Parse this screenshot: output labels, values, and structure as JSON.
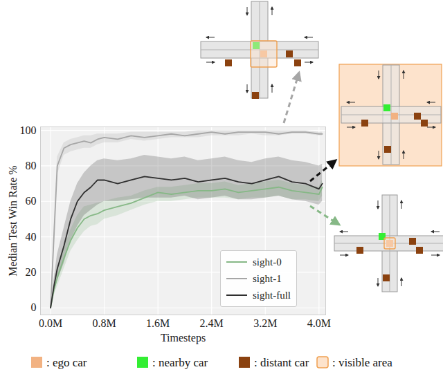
{
  "chart_data": {
    "type": "line",
    "xlabel": "Timesteps",
    "ylabel": "Median Test Win Rate %",
    "x": [
      0,
      0.05,
      0.1,
      0.2,
      0.3,
      0.4,
      0.5,
      0.6,
      0.7,
      0.8,
      1.0,
      1.2,
      1.4,
      1.6,
      1.8,
      2.0,
      2.2,
      2.4,
      2.6,
      2.8,
      3.0,
      3.2,
      3.4,
      3.6,
      3.8,
      4.0,
      4.05
    ],
    "series": [
      {
        "name": "sight-0",
        "color": "#86b886",
        "values": [
          0,
          10,
          17,
          28,
          38,
          45,
          50,
          52,
          53,
          55,
          57,
          59,
          62,
          65,
          64,
          65,
          66,
          66,
          67,
          65,
          66,
          67,
          68,
          66,
          65,
          64,
          68
        ],
        "lower": [
          0,
          7,
          12,
          22,
          32,
          38,
          43,
          46,
          47,
          50,
          52,
          55,
          58,
          60,
          60,
          61,
          62,
          62,
          62,
          61,
          62,
          62,
          63,
          61,
          61,
          60,
          63
        ],
        "upper": [
          0,
          13,
          22,
          34,
          44,
          52,
          57,
          58,
          59,
          60,
          62,
          63,
          66,
          68,
          68,
          69,
          70,
          70,
          71,
          69,
          70,
          71,
          72,
          70,
          69,
          68,
          72
        ]
      },
      {
        "name": "sight-1",
        "color": "#a6a6a6",
        "values": [
          0,
          40,
          80,
          90,
          92,
          93,
          94,
          93,
          95,
          96,
          95,
          97,
          96,
          97,
          98,
          97,
          98,
          99,
          98,
          99,
          99,
          99,
          98,
          99,
          99,
          98,
          98
        ],
        "lower": [
          0,
          35,
          75,
          86,
          88,
          89,
          90,
          90,
          92,
          93,
          93,
          95,
          94,
          95,
          96,
          96,
          96,
          97,
          97,
          97,
          98,
          97,
          97,
          98,
          98,
          97,
          97
        ],
        "upper": [
          0,
          45,
          85,
          93,
          95,
          96,
          97,
          97,
          98,
          98,
          98,
          99,
          99,
          99,
          99,
          99,
          100,
          100,
          100,
          100,
          100,
          100,
          100,
          100,
          100,
          99,
          99
        ]
      },
      {
        "name": "sight-full",
        "color": "#2f2f2f",
        "values": [
          0,
          12,
          22,
          35,
          50,
          60,
          65,
          68,
          72,
          72,
          70,
          72,
          74,
          73,
          72,
          73,
          71,
          72,
          73,
          71,
          70,
          72,
          74,
          71,
          70,
          67,
          70
        ],
        "lower": [
          0,
          8,
          15,
          25,
          38,
          46,
          52,
          55,
          58,
          60,
          60,
          61,
          62,
          62,
          62,
          63,
          61,
          62,
          63,
          61,
          61,
          62,
          63,
          61,
          60,
          58,
          60
        ],
        "upper": [
          0,
          16,
          30,
          45,
          60,
          70,
          76,
          80,
          83,
          84,
          83,
          84,
          86,
          85,
          84,
          85,
          83,
          84,
          85,
          83,
          82,
          84,
          85,
          83,
          82,
          80,
          81
        ]
      }
    ],
    "xlim": [
      -0.15,
      4.1
    ],
    "ylim": [
      -4,
      102
    ],
    "xticks": [
      {
        "value": 0,
        "label": "0.0M"
      },
      {
        "value": 0.8,
        "label": "0.8M"
      },
      {
        "value": 1.6,
        "label": "1.6M"
      },
      {
        "value": 2.4,
        "label": "2.4M"
      },
      {
        "value": 3.2,
        "label": "3.2M"
      },
      {
        "value": 4.0,
        "label": "4.0M"
      }
    ],
    "yticks": [
      0,
      20,
      40,
      60,
      80,
      100
    ],
    "grid": true,
    "legend": "lower right",
    "annotations": [
      ": ego car",
      ": nearby car",
      ": distant car",
      ": visible area"
    ]
  }
}
